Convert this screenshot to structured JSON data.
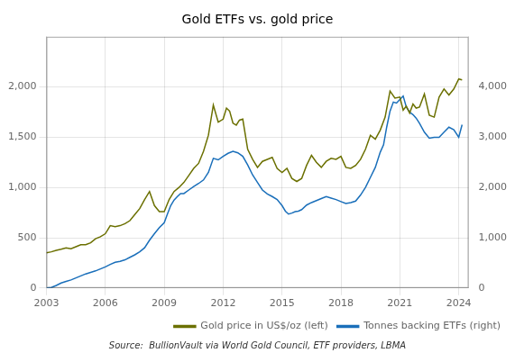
{
  "chart_data": {
    "type": "line",
    "title": "Gold ETFs vs. gold price",
    "annotations": [
      "Source:  BullionVault via World Gold Council, ETF providers, LBMA"
    ],
    "xlim": [
      2003,
      2024.5
    ],
    "xticks": [
      2003,
      2006,
      2009,
      2012,
      2015,
      2018,
      2021,
      2024
    ],
    "ylim": [
      0,
      2500
    ],
    "yticks": [
      0,
      500,
      {
        "value": 1000,
        "label": "1,000"
      },
      {
        "value": 1500,
        "label": "1,500"
      },
      {
        "value": 2000,
        "label": "2,000"
      }
    ],
    "y2lim": [
      0,
      5000
    ],
    "y2ticks": [
      0,
      {
        "value": 1000,
        "label": "1,000"
      },
      {
        "value": 2000,
        "label": "2,000"
      },
      {
        "value": 3000,
        "label": "3,000"
      },
      {
        "value": 4000,
        "label": "4,000"
      }
    ],
    "grid": true,
    "legend": "lower right",
    "series": [
      {
        "name": "Gold price in US$/oz (left)",
        "color": "#6b7000",
        "axis": "y",
        "x": [
          2003.0,
          2003.25,
          2003.5,
          2003.75,
          2004.0,
          2004.25,
          2004.5,
          2004.75,
          2005.0,
          2005.25,
          2005.5,
          2005.75,
          2006.0,
          2006.25,
          2006.5,
          2006.75,
          2007.0,
          2007.25,
          2007.5,
          2007.75,
          2008.0,
          2008.25,
          2008.5,
          2008.75,
          2009.0,
          2009.25,
          2009.5,
          2009.75,
          2010.0,
          2010.25,
          2010.5,
          2010.75,
          2011.0,
          2011.25,
          2011.5,
          2011.75,
          2012.0,
          2012.17,
          2012.33,
          2012.5,
          2012.67,
          2012.83,
          2013.0,
          2013.25,
          2013.5,
          2013.75,
          2014.0,
          2014.25,
          2014.5,
          2014.75,
          2015.0,
          2015.25,
          2015.5,
          2015.75,
          2016.0,
          2016.25,
          2016.5,
          2016.75,
          2017.0,
          2017.25,
          2017.5,
          2017.75,
          2018.0,
          2018.25,
          2018.5,
          2018.75,
          2019.0,
          2019.25,
          2019.5,
          2019.75,
          2020.0,
          2020.25,
          2020.5,
          2020.75,
          2021.0,
          2021.17,
          2021.33,
          2021.5,
          2021.67,
          2021.83,
          2022.0,
          2022.25,
          2022.5,
          2022.75,
          2023.0,
          2023.25,
          2023.5,
          2023.75,
          2024.0,
          2024.17
        ],
        "values": [
          350,
          360,
          375,
          385,
          400,
          390,
          410,
          430,
          430,
          450,
          490,
          510,
          540,
          620,
          610,
          620,
          640,
          670,
          730,
          790,
          880,
          960,
          820,
          760,
          760,
          880,
          960,
          1000,
          1050,
          1120,
          1190,
          1240,
          1360,
          1520,
          1820,
          1650,
          1680,
          1790,
          1760,
          1640,
          1620,
          1670,
          1680,
          1380,
          1280,
          1200,
          1260,
          1280,
          1300,
          1190,
          1150,
          1190,
          1090,
          1060,
          1090,
          1220,
          1320,
          1250,
          1200,
          1260,
          1290,
          1280,
          1310,
          1200,
          1190,
          1220,
          1280,
          1380,
          1520,
          1480,
          1570,
          1700,
          1960,
          1890,
          1900,
          1770,
          1810,
          1740,
          1830,
          1790,
          1800,
          1930,
          1720,
          1700,
          1900,
          1980,
          1920,
          1980,
          2080,
          2070
        ]
      },
      {
        "name": "Tonnes backing ETFs (right)",
        "color": "#1a6fba",
        "axis": "y2",
        "x": [
          2003.0,
          2003.25,
          2003.5,
          2003.75,
          2004.0,
          2004.25,
          2004.5,
          2004.75,
          2005.0,
          2005.25,
          2005.5,
          2005.75,
          2006.0,
          2006.25,
          2006.5,
          2006.75,
          2007.0,
          2007.25,
          2007.5,
          2007.75,
          2008.0,
          2008.25,
          2008.5,
          2008.75,
          2009.0,
          2009.17,
          2009.33,
          2009.5,
          2009.67,
          2009.83,
          2010.0,
          2010.25,
          2010.5,
          2010.75,
          2011.0,
          2011.25,
          2011.5,
          2011.75,
          2012.0,
          2012.25,
          2012.5,
          2012.75,
          2013.0,
          2013.25,
          2013.5,
          2013.75,
          2014.0,
          2014.25,
          2014.5,
          2014.75,
          2015.0,
          2015.17,
          2015.33,
          2015.5,
          2015.67,
          2015.83,
          2016.0,
          2016.25,
          2016.5,
          2016.75,
          2017.0,
          2017.25,
          2017.5,
          2017.75,
          2018.0,
          2018.25,
          2018.5,
          2018.75,
          2019.0,
          2019.25,
          2019.5,
          2019.75,
          2020.0,
          2020.17,
          2020.33,
          2020.5,
          2020.67,
          2020.83,
          2021.0,
          2021.17,
          2021.33,
          2021.5,
          2021.67,
          2021.83,
          2022.0,
          2022.25,
          2022.5,
          2022.75,
          2023.0,
          2023.25,
          2023.5,
          2023.75,
          2024.0,
          2024.17
        ],
        "values": [
          0,
          10,
          50,
          100,
          130,
          160,
          200,
          240,
          280,
          310,
          340,
          380,
          420,
          470,
          510,
          530,
          560,
          610,
          660,
          720,
          800,
          950,
          1080,
          1200,
          1300,
          1480,
          1640,
          1750,
          1820,
          1880,
          1880,
          1950,
          2020,
          2080,
          2150,
          2300,
          2580,
          2550,
          2620,
          2680,
          2720,
          2690,
          2620,
          2450,
          2250,
          2100,
          1950,
          1870,
          1820,
          1760,
          1640,
          1530,
          1470,
          1490,
          1520,
          1530,
          1560,
          1650,
          1700,
          1740,
          1780,
          1820,
          1790,
          1760,
          1720,
          1680,
          1700,
          1730,
          1850,
          2000,
          2200,
          2400,
          2700,
          2850,
          3200,
          3520,
          3700,
          3680,
          3750,
          3820,
          3600,
          3500,
          3450,
          3380,
          3280,
          3100,
          2980,
          3000,
          3000,
          3100,
          3200,
          3150,
          3000,
          3250
        ]
      }
    ]
  }
}
